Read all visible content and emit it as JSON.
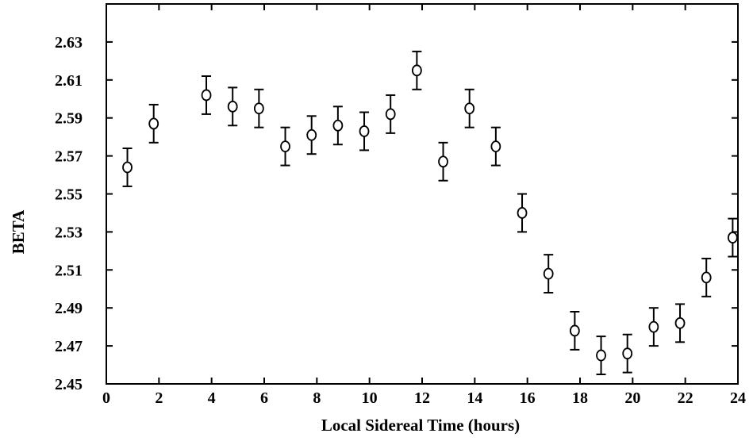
{
  "chart_data": {
    "type": "scatter",
    "title": "",
    "xlabel": "Local Sidereal Time (hours)",
    "ylabel": "BETA",
    "xlim": [
      0,
      24
    ],
    "ylim": [
      2.45,
      2.65
    ],
    "x_ticks": [
      0,
      2,
      4,
      6,
      8,
      10,
      12,
      14,
      16,
      18,
      20,
      22,
      24
    ],
    "x_tick_labels": [
      "0",
      "2",
      "4",
      "6",
      "8",
      "10",
      "12",
      "14",
      "16",
      "18",
      "20",
      "22",
      "24"
    ],
    "y_ticks": [
      2.45,
      2.47,
      2.49,
      2.51,
      2.53,
      2.55,
      2.57,
      2.59,
      2.61,
      2.63
    ],
    "y_tick_labels": [
      "2.45",
      "2.47",
      "2.49",
      "2.51",
      "2.53",
      "2.55",
      "2.57",
      "2.59",
      "2.61",
      "2.63"
    ],
    "grid": false,
    "marker": "open-circle",
    "error_bars": true,
    "points": [
      {
        "x": 0.8,
        "y": 2.564,
        "err": 0.01
      },
      {
        "x": 1.8,
        "y": 2.587,
        "err": 0.01
      },
      {
        "x": 3.8,
        "y": 2.602,
        "err": 0.01
      },
      {
        "x": 4.8,
        "y": 2.596,
        "err": 0.01
      },
      {
        "x": 5.8,
        "y": 2.595,
        "err": 0.01
      },
      {
        "x": 6.8,
        "y": 2.575,
        "err": 0.01
      },
      {
        "x": 7.8,
        "y": 2.581,
        "err": 0.01
      },
      {
        "x": 8.8,
        "y": 2.586,
        "err": 0.01
      },
      {
        "x": 9.8,
        "y": 2.583,
        "err": 0.01
      },
      {
        "x": 10.8,
        "y": 2.592,
        "err": 0.01
      },
      {
        "x": 11.8,
        "y": 2.615,
        "err": 0.01
      },
      {
        "x": 12.8,
        "y": 2.567,
        "err": 0.01
      },
      {
        "x": 13.8,
        "y": 2.595,
        "err": 0.01
      },
      {
        "x": 14.8,
        "y": 2.575,
        "err": 0.01
      },
      {
        "x": 15.8,
        "y": 2.54,
        "err": 0.01
      },
      {
        "x": 16.8,
        "y": 2.508,
        "err": 0.01
      },
      {
        "x": 17.8,
        "y": 2.478,
        "err": 0.01
      },
      {
        "x": 18.8,
        "y": 2.465,
        "err": 0.01
      },
      {
        "x": 19.8,
        "y": 2.466,
        "err": 0.01
      },
      {
        "x": 20.8,
        "y": 2.48,
        "err": 0.01
      },
      {
        "x": 21.8,
        "y": 2.482,
        "err": 0.01
      },
      {
        "x": 22.8,
        "y": 2.506,
        "err": 0.01
      },
      {
        "x": 23.8,
        "y": 2.527,
        "err": 0.01
      }
    ]
  }
}
